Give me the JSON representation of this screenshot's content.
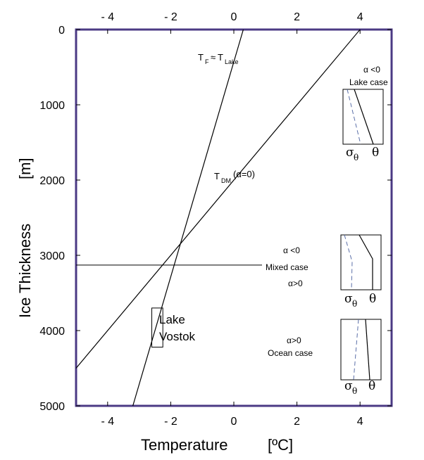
{
  "chart_data": {
    "type": "line",
    "xlabel": "Temperature",
    "xunit": "[ºC]",
    "ylabel": "Ice Thickness",
    "yunit": "[m]",
    "xlim": [
      -5,
      5
    ],
    "ylim": [
      0,
      5000
    ],
    "y_inverted": true,
    "x_ticks": [
      -4,
      -2,
      0,
      2,
      4
    ],
    "y_ticks": [
      0,
      1000,
      2000,
      3000,
      4000,
      5000
    ],
    "x_tick_labels": [
      "- 4",
      "- 2",
      "0",
      "2",
      "4"
    ],
    "y_tick_labels": [
      "0",
      "1000",
      "2000",
      "3000",
      "4000",
      "5000"
    ],
    "series": [
      {
        "name": "T_F ≈ T_Lake",
        "label_parts": {
          "t": "T",
          "sub1": "F",
          "approx": "≈",
          "t2": "T",
          "sub2": "Lake"
        },
        "points": [
          [
            0.3,
            0
          ],
          [
            -3.2,
            5000
          ]
        ]
      },
      {
        "name": "T_DM(α=0)",
        "label_parts": {
          "t": "T",
          "sub": "DM",
          "rest": "(α=0)"
        },
        "points": [
          [
            4.0,
            0
          ],
          [
            -5.0,
            4500
          ]
        ]
      }
    ],
    "hline": {
      "y": 3130,
      "label_alpha_neg": "α <0",
      "label": "Mixed    case",
      "label_alpha_pos": "α>0"
    },
    "lake_vostok": {
      "label_line1": "Lake",
      "label_line2": "Vostok",
      "x0": -2.6,
      "x1": -2.25,
      "y0": 3700,
      "y1": 4220
    },
    "insets": [
      {
        "case_alpha": "α <0",
        "case_label": "Lake    case",
        "sigma": "σ",
        "sigma_sub": "θ",
        "theta": "θ"
      },
      {
        "case_alpha": "α <0",
        "case_label": "Mixed case",
        "sigma": "σ",
        "sigma_sub": "θ",
        "theta": "θ"
      },
      {
        "case_alpha": "α>0",
        "case_label": "Ocean    case",
        "sigma": "σ",
        "sigma_sub": "θ",
        "theta": "θ"
      }
    ],
    "colors": {
      "frame": "#4b3a84",
      "line": "#000000",
      "dashed": "#5b6fa8"
    }
  }
}
